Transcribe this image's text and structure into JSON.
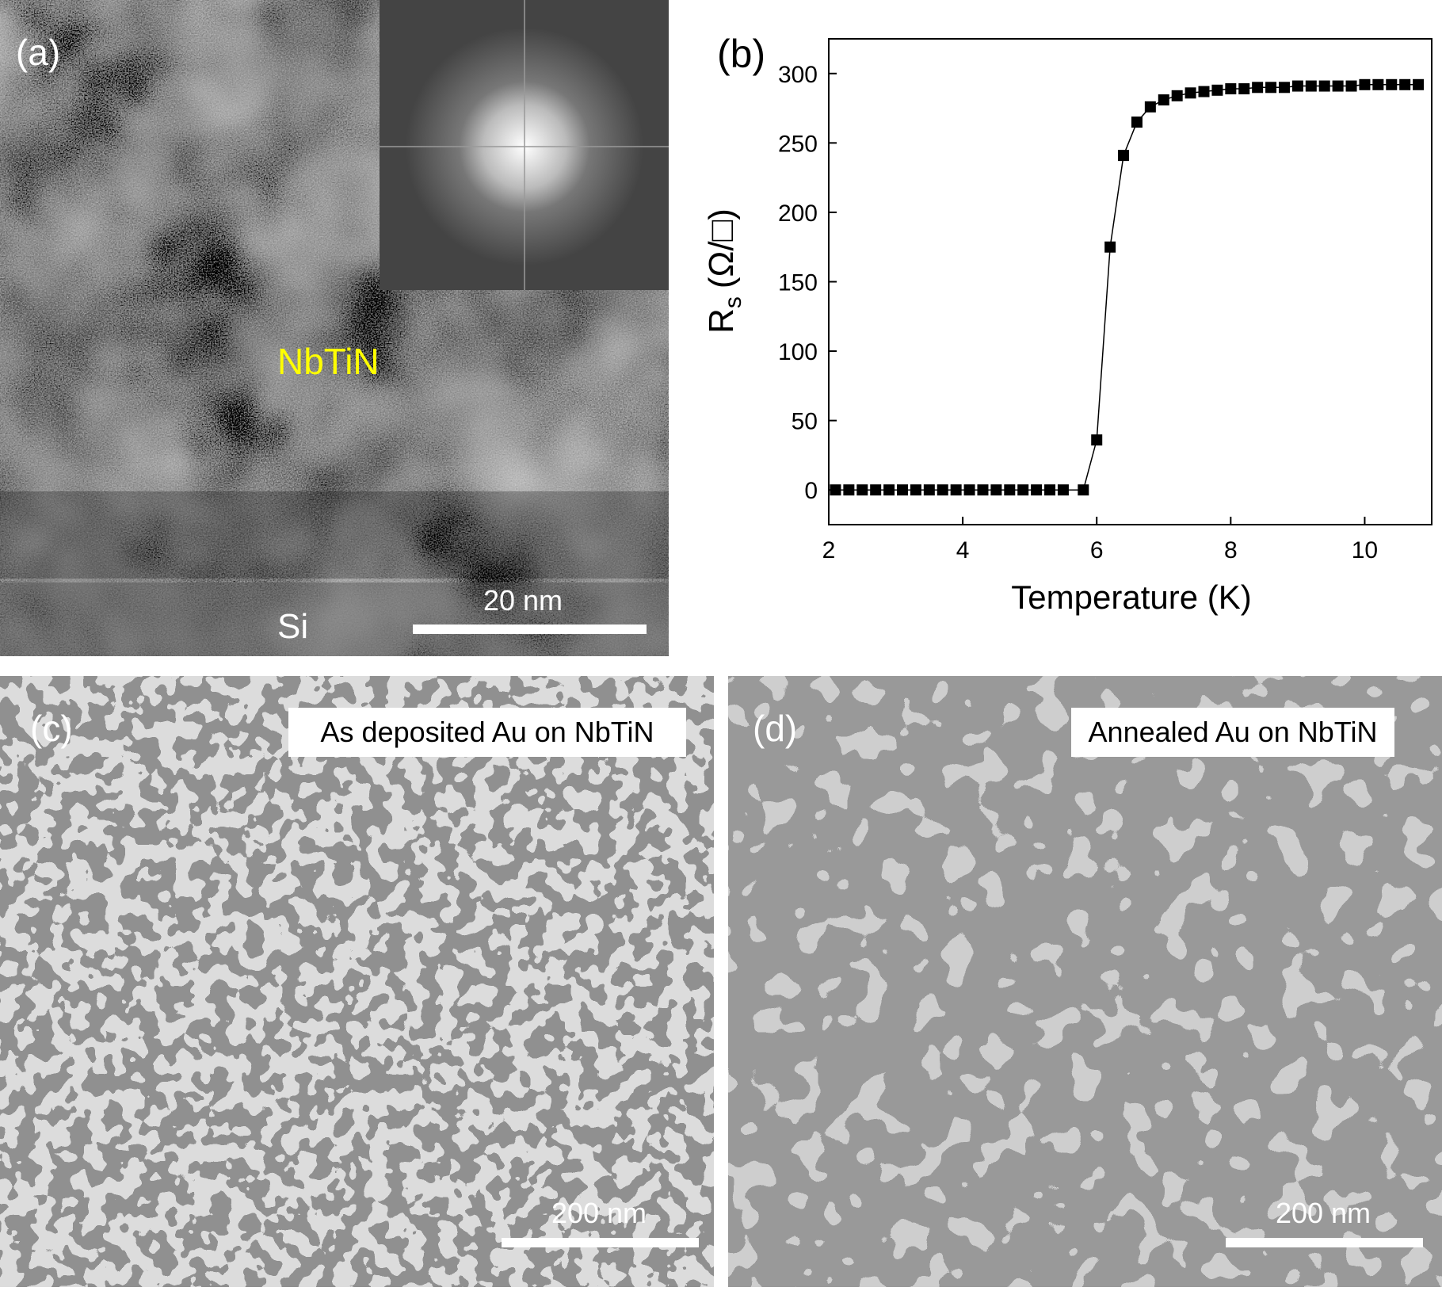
{
  "chart_data": {
    "type": "scatter",
    "panel_label": "(b)",
    "xlabel": "Temperature (K)",
    "ylabel": "R",
    "ylabel_sub": "s",
    "ylabel_unit": "(Ω/□)",
    "x": [
      2.1,
      2.3,
      2.5,
      2.7,
      2.9,
      3.1,
      3.3,
      3.5,
      3.7,
      3.9,
      4.1,
      4.3,
      4.5,
      4.7,
      4.9,
      5.1,
      5.3,
      5.5,
      5.8,
      6.0,
      6.2,
      6.4,
      6.6,
      6.8,
      7.0,
      7.2,
      7.4,
      7.6,
      7.8,
      8.0,
      8.2,
      8.4,
      8.6,
      8.8,
      9.0,
      9.2,
      9.4,
      9.6,
      9.8,
      10.0,
      10.2,
      10.4,
      10.6,
      10.8
    ],
    "series": [
      {
        "color": "#000000",
        "values": [
          0,
          0,
          0,
          0,
          0,
          0,
          0,
          0,
          0,
          0,
          0,
          0,
          0,
          0,
          0,
          0,
          0,
          0,
          0,
          36,
          175,
          241,
          265,
          276,
          281,
          284,
          286,
          287,
          288,
          289,
          289,
          290,
          290,
          290,
          291,
          291,
          291,
          291,
          291,
          292,
          292,
          292,
          292,
          292
        ]
      }
    ],
    "xlim": [
      2,
      11
    ],
    "xticks": [
      2,
      4,
      6,
      8,
      10
    ],
    "ylim": [
      -25,
      325
    ],
    "yticks": [
      0,
      50,
      100,
      150,
      200,
      250,
      300
    ]
  },
  "panels": {
    "a": {
      "label": "(a)",
      "film": "NbTiN",
      "substrate": "Si",
      "scale_bar": "20 nm"
    },
    "c": {
      "label": "(c)",
      "caption": "As deposited Au on NbTiN",
      "scale_bar": "200 nm"
    },
    "d": {
      "label": "(d)",
      "caption": "Annealed Au on NbTiN",
      "scale_bar": "200 nm"
    }
  }
}
